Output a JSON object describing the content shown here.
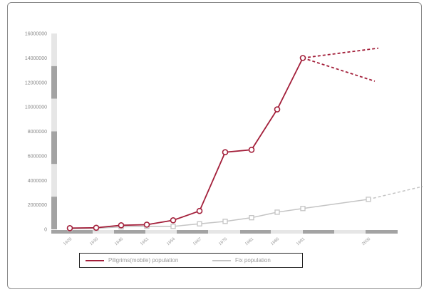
{
  "colors": {
    "pilgrims": "#a31f3a",
    "fix": "#c4c4c4",
    "axis_dark": "#a3a3a3",
    "axis_light": "#e6e6e6",
    "frame": "#8a8a8a"
  },
  "chart_data": {
    "type": "line",
    "title": "",
    "xlabel": "",
    "ylabel": "",
    "categories": [
      "1928",
      "1930",
      "1946",
      "1951",
      "1954",
      "1967",
      "1976",
      "1981",
      "1986",
      "1991",
      "2006"
    ],
    "y_ticks": [
      "0",
      "2000000",
      "4000000",
      "6000000",
      "8000000",
      "10000000",
      "12000000",
      "14000000",
      "16000000"
    ],
    "ylim": [
      0,
      16000000
    ],
    "grid": false,
    "legend_position": "bottom-left",
    "series": [
      {
        "name": "Piligrims(mobile) population",
        "color": "#a31f3a",
        "marker": "circle",
        "x": [
          "1928",
          "1930",
          "1946",
          "1951",
          "1954",
          "1967",
          "1976",
          "1981",
          "1986",
          "1991"
        ],
        "values": [
          100000,
          130000,
          330000,
          380000,
          740000,
          1500000,
          6300000,
          6500000,
          9800000,
          14000000
        ],
        "projection": {
          "style": "dashed",
          "high": 14800000,
          "low": 12100000
        }
      },
      {
        "name": "Fix population",
        "color": "#c4c4c4",
        "marker": "square",
        "x": [
          "1928",
          "1930",
          "1946",
          "1951",
          "1954",
          "1967",
          "1976",
          "1981",
          "1986",
          "1991",
          "2006"
        ],
        "values": [
          50000,
          80000,
          200000,
          250000,
          240000,
          450000,
          650000,
          950000,
          1400000,
          1700000,
          2450000
        ],
        "projection": {
          "style": "dashed",
          "end_value": 3500000
        }
      }
    ]
  }
}
